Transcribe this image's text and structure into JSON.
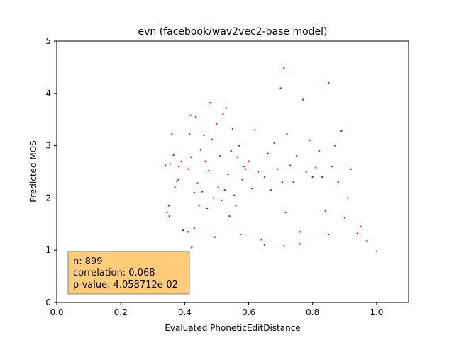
{
  "chart_data": {
    "type": "scatter",
    "title": "evn (facebook/wav2vec2-base model)",
    "xlabel": "Evaluated PhoneticEditDistance",
    "ylabel": "Predicted MOS",
    "xlim": [
      0.0,
      1.1
    ],
    "ylim": [
      0,
      5
    ],
    "xticks": [
      0.0,
      0.2,
      0.4,
      0.6,
      0.8,
      1.0
    ],
    "xtick_labels": [
      "0.0",
      "0.2",
      "0.4",
      "0.6",
      "0.8",
      "1.0"
    ],
    "yticks": [
      0,
      1,
      2,
      3,
      4,
      5
    ],
    "ytick_labels": [
      "0",
      "1",
      "2",
      "3",
      "4",
      "5"
    ],
    "grid": false,
    "marker_color": "#ff0000",
    "stats_box": {
      "n": "n: 899",
      "correlation": "correlation: 0.068",
      "p_value": "p-value: 4.058712e-02",
      "background": "#ffcc7a",
      "placement": "bottom-left"
    },
    "series": [
      {
        "x": [
          0.34,
          0.345,
          0.35,
          0.352,
          0.355,
          0.36,
          0.365,
          0.37,
          0.375,
          0.38,
          0.382,
          0.39,
          0.395,
          0.41,
          0.412,
          0.415,
          0.418,
          0.42,
          0.422,
          0.43,
          0.435,
          0.44,
          0.445,
          0.45,
          0.455,
          0.46,
          0.465,
          0.47,
          0.475,
          0.48,
          0.485,
          0.49,
          0.495,
          0.5,
          0.505,
          0.51,
          0.515,
          0.52,
          0.525,
          0.53,
          0.535,
          0.54,
          0.545,
          0.55,
          0.555,
          0.56,
          0.565,
          0.57,
          0.575,
          0.58,
          0.585,
          0.59,
          0.6,
          0.61,
          0.62,
          0.63,
          0.64,
          0.65,
          0.66,
          0.67,
          0.68,
          0.69,
          0.7,
          0.705,
          0.71,
          0.715,
          0.72,
          0.73,
          0.74,
          0.75,
          0.76,
          0.77,
          0.78,
          0.79,
          0.8,
          0.81,
          0.82,
          0.83,
          0.84,
          0.85,
          0.86,
          0.87,
          0.88,
          0.89,
          0.9,
          0.91,
          0.92,
          0.94,
          0.95,
          0.97,
          1.0,
          0.43,
          0.65,
          0.71,
          0.76,
          0.85
        ],
        "y": [
          2.62,
          1.72,
          1.85,
          1.65,
          2.65,
          3.22,
          2.82,
          2.2,
          2.32,
          2.35,
          2.6,
          2.7,
          1.38,
          1.35,
          2.55,
          3.22,
          3.58,
          2.78,
          1.05,
          2.1,
          3.55,
          2.28,
          1.85,
          2.92,
          2.12,
          3.2,
          2.7,
          1.8,
          2.52,
          3.82,
          3.12,
          2.0,
          1.25,
          3.42,
          2.2,
          2.8,
          1.95,
          3.6,
          2.15,
          3.72,
          2.45,
          1.65,
          2.9,
          3.32,
          2.05,
          1.85,
          2.78,
          3.0,
          1.3,
          2.35,
          2.6,
          2.55,
          2.7,
          2.18,
          3.3,
          2.5,
          1.2,
          2.4,
          2.85,
          2.15,
          3.05,
          2.55,
          4.1,
          2.3,
          4.48,
          1.72,
          3.22,
          2.62,
          2.3,
          2.8,
          1.35,
          3.88,
          2.5,
          3.1,
          2.4,
          2.58,
          2.9,
          2.4,
          1.75,
          4.2,
          2.6,
          3.0,
          2.3,
          3.28,
          1.62,
          2.0,
          2.55,
          1.32,
          1.45,
          1.18,
          0.98,
          1.42,
          1.1,
          1.08,
          1.12,
          1.3
        ]
      }
    ]
  }
}
